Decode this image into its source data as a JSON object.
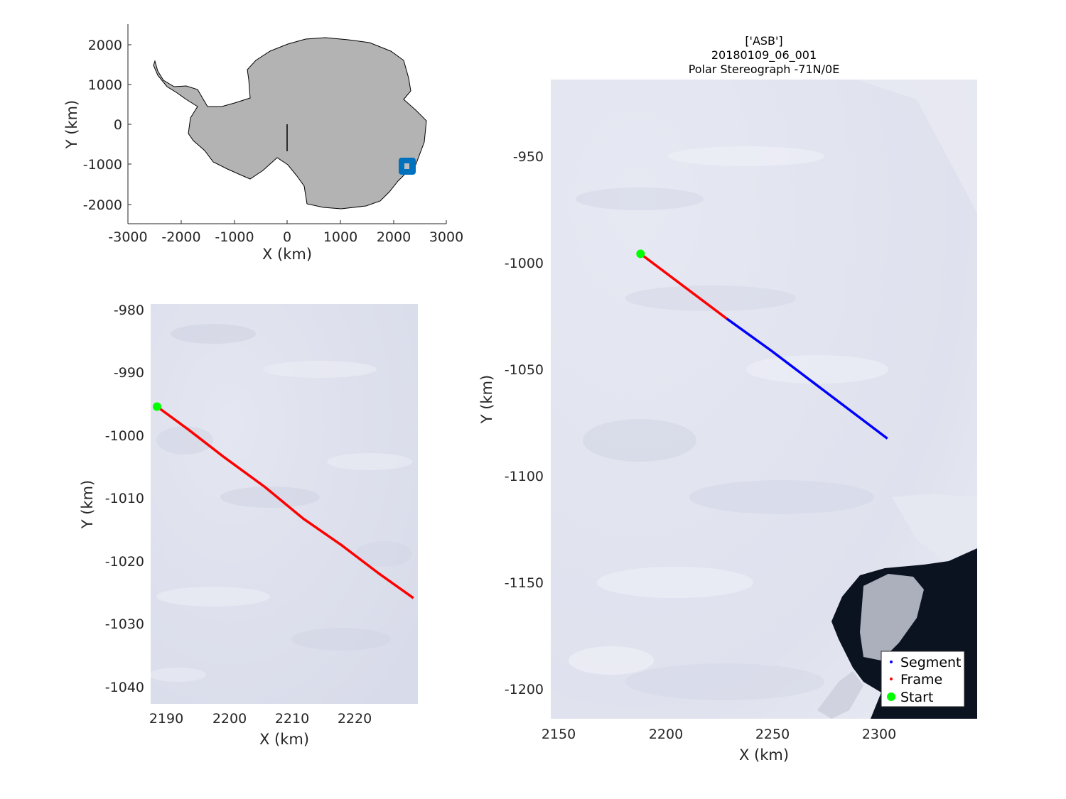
{
  "figure": {
    "title_lines": [
      "['ASB']",
      "20180109_06_001",
      "Polar Stereograph -71N/0E"
    ]
  },
  "overview_map": {
    "xlabel": "X (km)",
    "ylabel": "Y (km)",
    "xlim": [
      -3000,
      3000
    ],
    "ylim": [
      -2500,
      2500
    ],
    "xticks": [
      "-3000",
      "-2000",
      "-1000",
      "0",
      "1000",
      "2000",
      "3000"
    ],
    "yticks": [
      "-2000",
      "-1000",
      "0",
      "1000",
      "2000"
    ],
    "land_color": "#b3b3b3",
    "marker_color": "#0072bd",
    "marker_center_km": [
      2265,
      -1050
    ],
    "meridian_line_km": {
      "x": 0,
      "from_y": 0,
      "to_y": -680
    }
  },
  "frame_map": {
    "xlabel": "X (km)",
    "ylabel": "Y (km)",
    "xlim": [
      2187.5,
      2229.5
    ],
    "ylim": [
      -1043,
      -979.5
    ],
    "xticks": [
      "2190",
      "2200",
      "2210",
      "2220"
    ],
    "yticks": [
      "-980",
      "-990",
      "-1000",
      "-1010",
      "-1020",
      "-1030",
      "-1040"
    ],
    "frame_track_km": [
      [
        2188.5,
        -995.8
      ],
      [
        2193.5,
        -999.5
      ],
      [
        2199,
        -1003.8
      ],
      [
        2205.5,
        -1008.6
      ],
      [
        2211.5,
        -1013.6
      ],
      [
        2217.5,
        -1017.8
      ],
      [
        2223.5,
        -1022.4
      ],
      [
        2228.8,
        -1026.2
      ]
    ],
    "frame_color": "#ff0000",
    "start_color": "#00ff00"
  },
  "segment_map": {
    "xlabel": "X (km)",
    "ylabel": "Y (km)",
    "xlim": [
      2146.5,
      2346
    ],
    "ylim": [
      -1214,
      -914
    ],
    "xticks": [
      "2150",
      "2200",
      "2250",
      "2300"
    ],
    "yticks": [
      "-950",
      "-1000",
      "-1050",
      "-1100",
      "-1150",
      "-1200"
    ],
    "frame_track_km": [
      [
        2188.5,
        -995.8
      ],
      [
        2228.8,
        -1026.2
      ]
    ],
    "segment_track_km": [
      [
        2228.8,
        -1026.2
      ],
      [
        2250,
        -1041.5
      ],
      [
        2275,
        -1060.5
      ],
      [
        2304,
        -1082.5
      ]
    ],
    "segment_color": "#0000ff",
    "frame_color": "#ff0000",
    "start_color": "#00ff00",
    "legend": {
      "placement": "bottom-right",
      "entries": [
        {
          "label": "Segment",
          "color": "#0000ff"
        },
        {
          "label": "Frame",
          "color": "#ff0000"
        },
        {
          "label": "Start",
          "color": "#00ff00"
        }
      ]
    }
  }
}
